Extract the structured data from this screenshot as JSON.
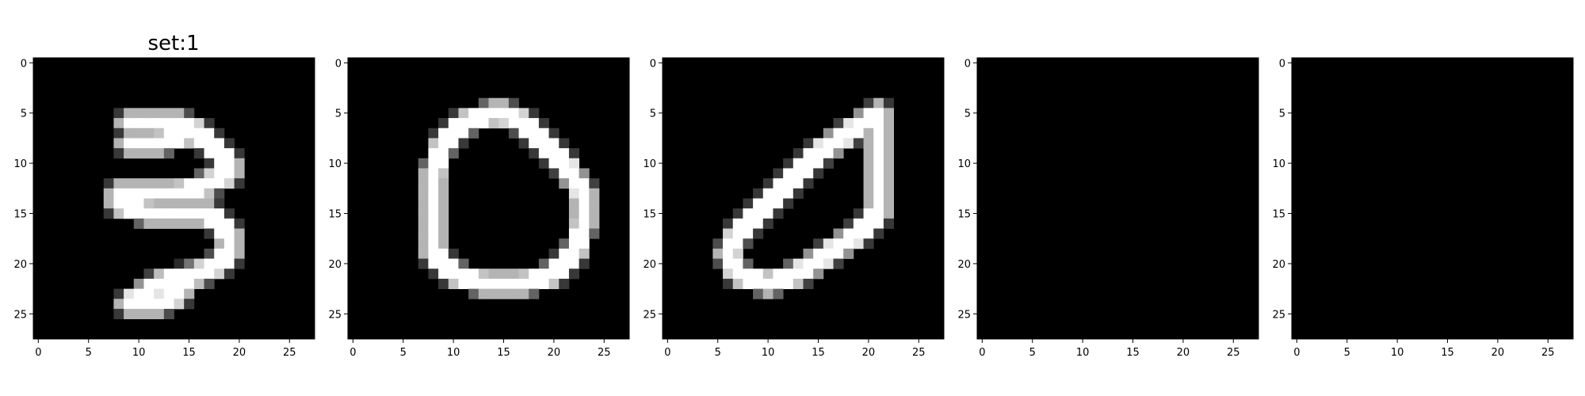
{
  "chart_data": [
    {
      "type": "heatmap",
      "title": "set:1",
      "x_ticks": [
        "0",
        "5",
        "10",
        "15",
        "20",
        "25"
      ],
      "y_ticks": [
        "0",
        "5",
        "10",
        "15",
        "20",
        "25"
      ],
      "xlim": [
        -0.5,
        27.5
      ],
      "ylim": [
        27.5,
        -0.5
      ],
      "colormap": "gray",
      "grid_size": [
        28,
        28
      ],
      "strokes": [
        [
          [
            9,
            6
          ],
          [
            12,
            6
          ],
          [
            14,
            6
          ],
          [
            16,
            7
          ]
        ],
        [
          [
            16,
            7
          ],
          [
            17,
            8
          ],
          [
            18,
            9
          ]
        ],
        [
          [
            9,
            8
          ],
          [
            12,
            8
          ],
          [
            15,
            7
          ]
        ],
        [
          [
            18,
            9
          ],
          [
            19,
            10
          ],
          [
            19,
            11
          ]
        ],
        [
          [
            19,
            11
          ],
          [
            17,
            12
          ],
          [
            14,
            13
          ],
          [
            10,
            13
          ],
          [
            8,
            13
          ]
        ],
        [
          [
            8,
            14
          ],
          [
            11,
            15
          ],
          [
            15,
            15
          ],
          [
            17,
            15
          ],
          [
            18,
            16
          ]
        ],
        [
          [
            18,
            16
          ],
          [
            19,
            17
          ],
          [
            19,
            19
          ],
          [
            18,
            20
          ],
          [
            16,
            21
          ],
          [
            12,
            22
          ],
          [
            9,
            24
          ]
        ],
        [
          [
            9,
            24
          ],
          [
            12,
            24
          ],
          [
            14,
            23
          ]
        ]
      ]
    },
    {
      "type": "heatmap",
      "title": "",
      "x_ticks": [
        "0",
        "5",
        "10",
        "15",
        "20",
        "25"
      ],
      "y_ticks": [
        "0",
        "5",
        "10",
        "15",
        "20",
        "25"
      ],
      "xlim": [
        -0.5,
        27.5
      ],
      "ylim": [
        27.5,
        -0.5
      ],
      "colormap": "gray",
      "grid_size": [
        28,
        28
      ],
      "strokes": [
        [
          [
            14,
            5
          ],
          [
            11,
            6
          ],
          [
            9,
            8
          ],
          [
            8,
            11
          ],
          [
            8,
            15
          ],
          [
            8,
            19
          ],
          [
            10,
            21
          ],
          [
            13,
            22
          ],
          [
            17,
            22
          ],
          [
            20,
            21
          ],
          [
            22,
            19
          ],
          [
            23,
            16
          ],
          [
            23,
            13
          ],
          [
            21,
            10
          ],
          [
            19,
            8
          ],
          [
            17,
            6
          ],
          [
            15,
            5
          ],
          [
            14,
            5
          ]
        ]
      ]
    },
    {
      "type": "heatmap",
      "title": "",
      "x_ticks": [
        "0",
        "5",
        "10",
        "15",
        "20",
        "25"
      ],
      "y_ticks": [
        "0",
        "5",
        "10",
        "15",
        "20",
        "25"
      ],
      "xlim": [
        -0.5,
        27.5
      ],
      "ylim": [
        27.5,
        -0.5
      ],
      "colormap": "gray",
      "grid_size": [
        28,
        28
      ],
      "strokes": [
        [
          [
            21,
            5
          ],
          [
            18,
            7
          ],
          [
            15,
            9
          ],
          [
            12,
            12
          ],
          [
            9,
            15
          ],
          [
            7,
            17
          ],
          [
            6,
            19
          ],
          [
            7,
            21
          ],
          [
            10,
            22
          ],
          [
            13,
            21
          ],
          [
            16,
            19
          ],
          [
            19,
            17
          ],
          [
            21,
            15
          ],
          [
            21,
            12
          ],
          [
            21,
            9
          ],
          [
            21,
            5
          ]
        ]
      ]
    },
    {
      "type": "heatmap",
      "title": "",
      "x_ticks": [
        "0",
        "5",
        "10",
        "15",
        "20",
        "25"
      ],
      "y_ticks": [
        "0",
        "5",
        "10",
        "15",
        "20",
        "25"
      ],
      "xlim": [
        -0.5,
        27.5
      ],
      "ylim": [
        27.5,
        -0.5
      ],
      "colormap": "gray",
      "grid_size": [
        28,
        28
      ],
      "strokes": []
    },
    {
      "type": "heatmap",
      "title": "",
      "x_ticks": [
        "0",
        "5",
        "10",
        "15",
        "20",
        "25"
      ],
      "y_ticks": [
        "0",
        "5",
        "10",
        "15",
        "20",
        "25"
      ],
      "xlim": [
        -0.5,
        27.5
      ],
      "ylim": [
        27.5,
        -0.5
      ],
      "colormap": "gray",
      "grid_size": [
        28,
        28
      ],
      "strokes": []
    }
  ]
}
